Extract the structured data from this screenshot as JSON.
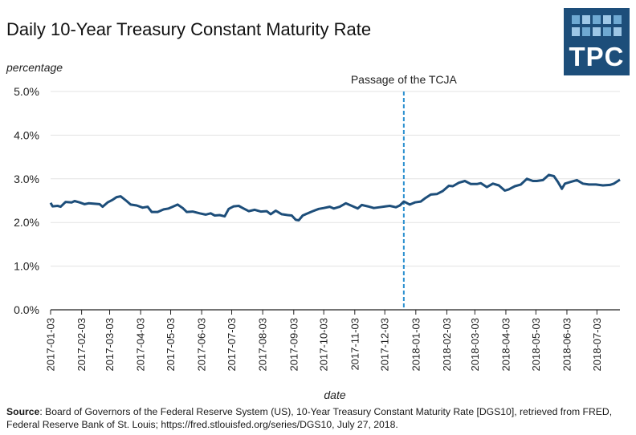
{
  "header": {
    "title": "Daily 10-Year Treasury Constant Maturity Rate",
    "logo_text": "TPC"
  },
  "chart_data": {
    "type": "line",
    "title": "Daily 10-Year Treasury Constant Maturity Rate",
    "ylabel": "percentage",
    "xlabel": "date",
    "ylim": [
      0,
      5
    ],
    "y_ticks": [
      "0.0%",
      "1.0%",
      "2.0%",
      "3.0%",
      "4.0%",
      "5.0%"
    ],
    "y_tick_values": [
      0,
      1,
      2,
      3,
      4,
      5
    ],
    "x_range": [
      "2017-01-03",
      "2018-07-26"
    ],
    "x_ticks": [
      "2017-01-03",
      "2017-02-03",
      "2017-03-03",
      "2017-04-03",
      "2017-05-03",
      "2017-06-03",
      "2017-07-03",
      "2017-08-03",
      "2017-09-03",
      "2017-10-03",
      "2017-11-03",
      "2017-12-03",
      "2018-01-03",
      "2018-02-03",
      "2018-03-03",
      "2018-04-03",
      "2018-05-03",
      "2018-06-03",
      "2018-07-03"
    ],
    "grid": "horizontal",
    "line_color": "#1d4e7a",
    "annotation": {
      "label": "Passage of the TCJA",
      "date": "2017-12-22",
      "color": "#2a8fcf",
      "style": "dashed"
    },
    "series": [
      {
        "x": [
          "2017-01-03",
          "2017-01-05",
          "2017-01-10",
          "2017-01-13",
          "2017-01-18",
          "2017-01-24",
          "2017-01-27",
          "2017-02-01",
          "2017-02-06",
          "2017-02-10",
          "2017-02-15",
          "2017-02-21",
          "2017-02-24",
          "2017-03-01",
          "2017-03-06",
          "2017-03-10",
          "2017-03-14",
          "2017-03-20",
          "2017-03-24",
          "2017-03-30",
          "2017-04-05",
          "2017-04-10",
          "2017-04-14",
          "2017-04-20",
          "2017-04-26",
          "2017-05-01",
          "2017-05-05",
          "2017-05-10",
          "2017-05-15",
          "2017-05-19",
          "2017-05-25",
          "2017-06-01",
          "2017-06-07",
          "2017-06-12",
          "2017-06-16",
          "2017-06-21",
          "2017-06-26",
          "2017-06-30",
          "2017-07-05",
          "2017-07-10",
          "2017-07-14",
          "2017-07-20",
          "2017-07-26",
          "2017-08-01",
          "2017-08-07",
          "2017-08-11",
          "2017-08-16",
          "2017-08-22",
          "2017-08-28",
          "2017-09-01",
          "2017-09-05",
          "2017-09-08",
          "2017-09-12",
          "2017-09-18",
          "2017-09-22",
          "2017-09-28",
          "2017-10-03",
          "2017-10-09",
          "2017-10-13",
          "2017-10-19",
          "2017-10-25",
          "2017-10-31",
          "2017-11-06",
          "2017-11-10",
          "2017-11-16",
          "2017-11-22",
          "2017-11-28",
          "2017-12-04",
          "2017-12-08",
          "2017-12-14",
          "2017-12-18",
          "2017-12-22",
          "2017-12-28",
          "2018-01-02",
          "2018-01-08",
          "2018-01-12",
          "2018-01-18",
          "2018-01-24",
          "2018-01-30",
          "2018-02-05",
          "2018-02-09",
          "2018-02-15",
          "2018-02-21",
          "2018-02-27",
          "2018-03-05",
          "2018-03-09",
          "2018-03-15",
          "2018-03-21",
          "2018-03-27",
          "2018-04-02",
          "2018-04-06",
          "2018-04-12",
          "2018-04-18",
          "2018-04-24",
          "2018-04-30",
          "2018-05-04",
          "2018-05-10",
          "2018-05-16",
          "2018-05-21",
          "2018-05-25",
          "2018-05-29",
          "2018-06-01",
          "2018-06-07",
          "2018-06-13",
          "2018-06-19",
          "2018-06-25",
          "2018-07-02",
          "2018-07-09",
          "2018-07-16",
          "2018-07-20",
          "2018-07-26"
        ],
        "values": [
          2.45,
          2.37,
          2.38,
          2.36,
          2.47,
          2.46,
          2.49,
          2.46,
          2.42,
          2.44,
          2.43,
          2.42,
          2.36,
          2.46,
          2.52,
          2.58,
          2.6,
          2.49,
          2.41,
          2.39,
          2.34,
          2.36,
          2.24,
          2.24,
          2.3,
          2.32,
          2.36,
          2.41,
          2.33,
          2.24,
          2.25,
          2.21,
          2.18,
          2.21,
          2.16,
          2.17,
          2.14,
          2.31,
          2.37,
          2.38,
          2.33,
          2.26,
          2.29,
          2.25,
          2.26,
          2.19,
          2.27,
          2.19,
          2.17,
          2.16,
          2.06,
          2.05,
          2.16,
          2.22,
          2.26,
          2.31,
          2.33,
          2.36,
          2.32,
          2.36,
          2.44,
          2.38,
          2.32,
          2.4,
          2.37,
          2.33,
          2.35,
          2.37,
          2.38,
          2.35,
          2.39,
          2.48,
          2.41,
          2.46,
          2.48,
          2.55,
          2.64,
          2.65,
          2.72,
          2.84,
          2.83,
          2.91,
          2.95,
          2.88,
          2.88,
          2.9,
          2.81,
          2.89,
          2.85,
          2.73,
          2.76,
          2.83,
          2.87,
          3.0,
          2.95,
          2.95,
          2.97,
          3.09,
          3.06,
          2.93,
          2.77,
          2.89,
          2.93,
          2.97,
          2.89,
          2.87,
          2.87,
          2.85,
          2.86,
          2.89,
          2.98
        ]
      }
    ]
  },
  "source": {
    "label": "Source",
    "text": ": Board of Governors of the Federal Reserve System (US), 10-Year Treasury Constant Maturity Rate [DGS10], retrieved from FRED, Federal Reserve Bank of St. Louis; https://fred.stlouisfed.org/series/DGS10, July 27, 2018."
  }
}
